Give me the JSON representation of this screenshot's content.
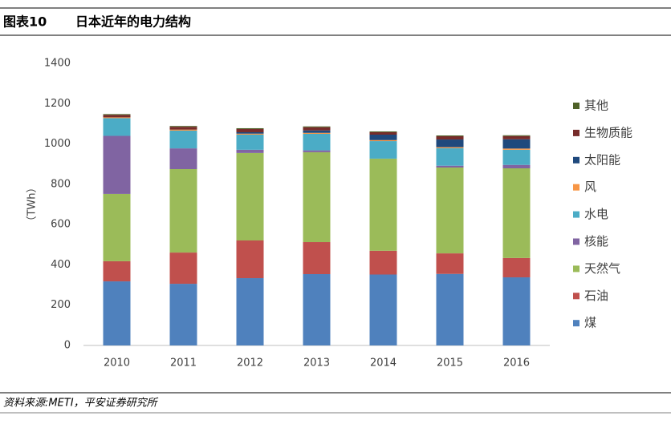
{
  "header": {
    "label": "图表10",
    "title": "日本近年的电力结构"
  },
  "footer": {
    "source": "资料来源:METI，平安证券研究所"
  },
  "chart_data": {
    "type": "stacked_bar",
    "ylabel": "（TWh）",
    "categories": [
      "2010",
      "2011",
      "2012",
      "2013",
      "2014",
      "2015",
      "2016"
    ],
    "ylim": [
      0,
      1400
    ],
    "yticks": [
      0,
      200,
      400,
      600,
      800,
      1000,
      1200,
      1400
    ],
    "grid": false,
    "legend": "right",
    "series": [
      {
        "name": "煤",
        "color": "#4f81bd",
        "values": [
          318,
          306,
          334,
          354,
          352,
          355,
          338
        ]
      },
      {
        "name": "石油",
        "color": "#c0504d",
        "values": [
          100,
          155,
          187,
          159,
          118,
          102,
          96
        ]
      },
      {
        "name": "天然气",
        "color": "#9bbb59",
        "values": [
          334,
          414,
          434,
          446,
          457,
          426,
          445
        ]
      },
      {
        "name": "核能",
        "color": "#8064a2",
        "values": [
          288,
          103,
          16,
          9,
          0,
          9,
          17
        ]
      },
      {
        "name": "水电",
        "color": "#4bacc6",
        "values": [
          88,
          88,
          75,
          82,
          87,
          87,
          75
        ]
      },
      {
        "name": "风",
        "color": "#f79646",
        "values": [
          4,
          5,
          5,
          5,
          5,
          5,
          6
        ]
      },
      {
        "name": "太阳能",
        "color": "#1f497d",
        "values": [
          0,
          0,
          7,
          12,
          27,
          38,
          46
        ]
      },
      {
        "name": "生物质能",
        "color": "#772c2a",
        "values": [
          12,
          14,
          16,
          16,
          12,
          16,
          16
        ]
      },
      {
        "name": "其他",
        "color": "#4f6228",
        "values": [
          4,
          4,
          4,
          4,
          4,
          4,
          4
        ]
      }
    ]
  }
}
